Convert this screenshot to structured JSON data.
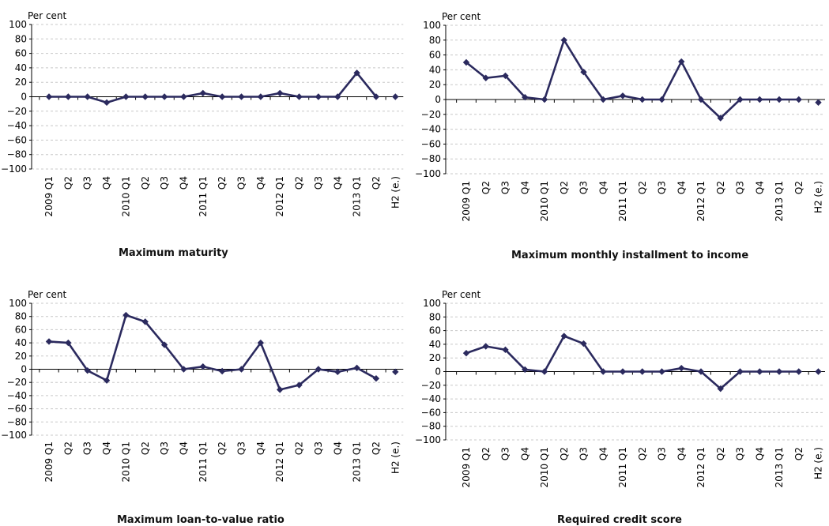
{
  "colors": {
    "line": "#2b2a5e",
    "marker": "#2b2a5e",
    "axis": "#000000",
    "grid": "#c8c8c8"
  },
  "chart_data": [
    {
      "type": "line",
      "title": "Maximum maturity",
      "ylabel": "Per cent",
      "ylim": [
        -100,
        100
      ],
      "yticks": [
        100,
        80,
        60,
        40,
        20,
        0,
        -20,
        -40,
        -60,
        -80,
        -100
      ],
      "categories": [
        "2009 Q1",
        "Q2",
        "Q3",
        "Q4",
        "2010 Q1",
        "Q2",
        "Q3",
        "Q4",
        "2011 Q1",
        "Q2",
        "Q3",
        "Q4",
        "2012 Q1",
        "Q2",
        "Q3",
        "Q4",
        "2013 Q1",
        "Q2",
        "H2 (e.)"
      ],
      "values": [
        0,
        0,
        0,
        -8,
        0,
        0,
        0,
        0,
        5,
        0,
        0,
        0,
        5,
        0,
        0,
        0,
        33,
        0,
        0
      ],
      "connected_points": 18,
      "legend": "none",
      "grid": true
    },
    {
      "type": "line",
      "title": "Maximum monthly installment to income",
      "ylabel": "Per cent",
      "ylim": [
        -100,
        100
      ],
      "yticks": [
        100,
        80,
        60,
        40,
        20,
        0,
        -20,
        -40,
        -60,
        -80,
        -100
      ],
      "categories": [
        "2009 Q1",
        "Q2",
        "Q3",
        "Q4",
        "2010 Q1",
        "Q2",
        "Q3",
        "Q4",
        "2011 Q1",
        "Q2",
        "Q3",
        "Q4",
        "2012 Q1",
        "Q2",
        "Q3",
        "Q4",
        "2013 Q1",
        "Q2",
        "H2 (e.)"
      ],
      "values": [
        50,
        29,
        32,
        3,
        0,
        80,
        37,
        0,
        5,
        0,
        0,
        51,
        0,
        -25,
        0,
        0,
        0,
        0,
        -4
      ],
      "connected_points": 18,
      "legend": "none",
      "grid": true
    },
    {
      "type": "line",
      "title": "Maximum loan-to-value ratio",
      "ylabel": "Per cent",
      "ylim": [
        -100,
        100
      ],
      "yticks": [
        100,
        80,
        60,
        40,
        20,
        0,
        -20,
        -40,
        -60,
        -80,
        -100
      ],
      "categories": [
        "2009 Q1",
        "Q2",
        "Q3",
        "Q4",
        "2010 Q1",
        "Q2",
        "Q3",
        "Q4",
        "2011 Q1",
        "Q2",
        "Q3",
        "Q4",
        "2012 Q1",
        "Q2",
        "Q3",
        "Q4",
        "2013 Q1",
        "Q2",
        "H2 (e.)"
      ],
      "values": [
        42,
        40,
        -2,
        -17,
        82,
        72,
        37,
        0,
        4,
        -3,
        0,
        40,
        -31,
        -24,
        0,
        -4,
        2,
        -14,
        -4
      ],
      "connected_points": 18,
      "legend": "none",
      "grid": true
    },
    {
      "type": "line",
      "title": "Required credit score",
      "ylabel": "Per cent",
      "ylim": [
        -100,
        100
      ],
      "yticks": [
        100,
        80,
        60,
        40,
        20,
        0,
        -20,
        -40,
        -60,
        -80,
        -100
      ],
      "categories": [
        "2009 Q1",
        "Q2",
        "Q3",
        "Q4",
        "2010 Q1",
        "Q2",
        "Q3",
        "Q4",
        "2011 Q1",
        "Q2",
        "Q3",
        "Q4",
        "2012 Q1",
        "Q2",
        "Q3",
        "Q4",
        "2013 Q1",
        "Q2",
        "H2 (e.)"
      ],
      "values": [
        27,
        37,
        32,
        3,
        0,
        52,
        41,
        0,
        0,
        0,
        0,
        5,
        0,
        -25,
        0,
        0,
        0,
        0,
        0
      ],
      "connected_points": 18,
      "legend": "none",
      "grid": true
    }
  ]
}
